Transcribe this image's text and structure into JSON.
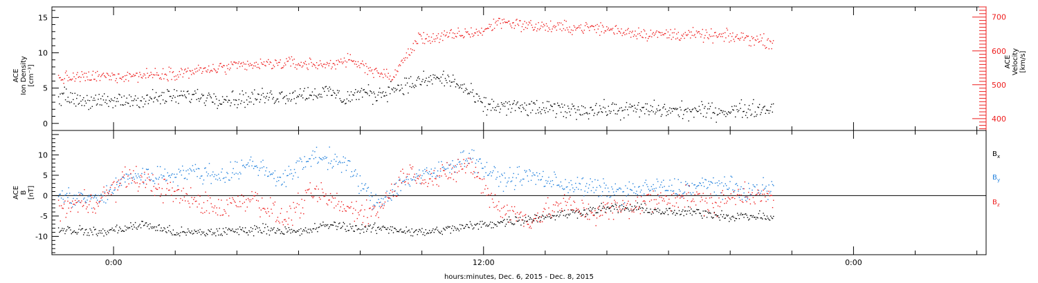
{
  "chart_data": [
    {
      "type": "scatter",
      "panel": "top",
      "y_left_label_lines": [
        "ACE",
        "Ion Density",
        "[cm⁻³]"
      ],
      "y_right_label_lines": [
        "ACE",
        "Velocity",
        "[km/s]"
      ],
      "y_left_range": [
        -1,
        16.5
      ],
      "y_right_range": [
        365,
        730
      ],
      "y_left_ticks": [
        0,
        5,
        10,
        15
      ],
      "y_right_ticks": [
        400,
        500,
        600,
        700
      ],
      "grid": false,
      "series": [
        {
          "axis": "right",
          "color": "#ee1c1c",
          "x": [
            -1.8,
            -0.5,
            1,
            2.5,
            4,
            5.5,
            7,
            7.4,
            8,
            8.4,
            9,
            9.9,
            10.5,
            11.2,
            12,
            12.5,
            13.5,
            14.5,
            15.5,
            16.5,
            17.5,
            18.5,
            19.5,
            20.5,
            21.4
          ],
          "y": [
            520,
            525,
            530,
            540,
            555,
            565,
            560,
            575,
            560,
            545,
            520,
            640,
            640,
            650,
            660,
            690,
            675,
            670,
            670,
            660,
            650,
            650,
            645,
            640,
            625
          ]
        },
        {
          "axis": "left",
          "color": "#000000",
          "x": [
            -1.8,
            -0.5,
            1,
            2.5,
            4,
            5.5,
            7,
            7.5,
            8,
            8.5,
            9,
            9.5,
            10,
            10.5,
            11,
            11.5,
            12,
            12.5,
            13.5,
            14.5,
            15.5,
            16.5,
            17.5,
            18.5,
            19.5,
            20.5,
            21.4
          ],
          "y": [
            4,
            3,
            3.5,
            4,
            3.5,
            4,
            4.5,
            3.5,
            4.5,
            4,
            5,
            5.5,
            6,
            6.5,
            6,
            4.5,
            2.5,
            2.5,
            2.2,
            2,
            2,
            2,
            2,
            1.8,
            1.8,
            2,
            2.2
          ]
        }
      ]
    },
    {
      "type": "scatter",
      "panel": "bottom",
      "y_label_lines": [
        "ACE",
        "B",
        "[nT]"
      ],
      "y_range": [
        -14.5,
        16
      ],
      "y_ticks": [
        -10,
        -5,
        0,
        5,
        10
      ],
      "zero_line": true,
      "grid": false,
      "legend_position": "right",
      "series": [
        {
          "name": "Bx",
          "color": "#000000",
          "x": [
            -1.8,
            -0.5,
            1,
            2,
            3,
            4,
            5,
            6,
            7,
            8,
            9,
            10,
            11,
            12,
            13,
            14,
            15,
            16,
            17,
            18,
            19,
            20,
            21,
            21.4
          ],
          "y": [
            -8,
            -9,
            -7,
            -9,
            -9,
            -8.5,
            -8,
            -9,
            -7,
            -8,
            -8,
            -9,
            -8,
            -7,
            -6,
            -5,
            -4,
            -3,
            -3,
            -4,
            -4,
            -5,
            -5,
            -5.5
          ]
        },
        {
          "name": "By",
          "color": "#1f7fdc",
          "x": [
            -1.8,
            -0.5,
            0.5,
            1.5,
            2.5,
            3.5,
            4.5,
            5.5,
            6.5,
            7.5,
            8.5,
            9.5,
            10.5,
            11.5,
            12.5,
            13.5,
            14.5,
            15.5,
            16.5,
            17.5,
            18.5,
            19.5,
            20.5,
            21.4
          ],
          "y": [
            0,
            -1,
            5,
            5,
            6,
            5,
            8,
            4,
            10,
            8,
            -2,
            4,
            6,
            10,
            4,
            5,
            3,
            2,
            1,
            2,
            2,
            3,
            1,
            2
          ]
        },
        {
          "name": "Bz",
          "color": "#ee1c1c",
          "x": [
            -1.8,
            -0.5,
            0.5,
            1.5,
            2.5,
            3.5,
            4.5,
            5.5,
            6.5,
            7.5,
            8.5,
            9.5,
            10.5,
            11.5,
            12.5,
            13.5,
            14.5,
            15.5,
            16.5,
            17.5,
            18.5,
            19.5,
            20.5,
            21.4
          ],
          "y": [
            -3,
            -1,
            5,
            2,
            -1,
            -3,
            0,
            -6,
            1,
            -3,
            -4,
            6,
            4,
            8,
            -3,
            -6,
            -2,
            -4,
            -3,
            -1,
            0,
            -2,
            1,
            -1
          ]
        }
      ]
    }
  ],
  "x_axis": {
    "range": [
      -2,
      28.3
    ],
    "tick_values": [
      0,
      12,
      24
    ],
    "tick_labels": [
      "0:00",
      "12:00",
      "0:00"
    ],
    "minor_step": 2,
    "label": "hours:minutes, Dec.  6, 2015 - Dec.  8, 2015"
  },
  "legend": {
    "labels": [
      "B",
      "B",
      "B"
    ],
    "subscripts": [
      "x",
      "y",
      "z"
    ],
    "colors": [
      "#000000",
      "#1f7fdc",
      "#ee1c1c"
    ]
  },
  "axis_color_right": "#ee1c1c"
}
